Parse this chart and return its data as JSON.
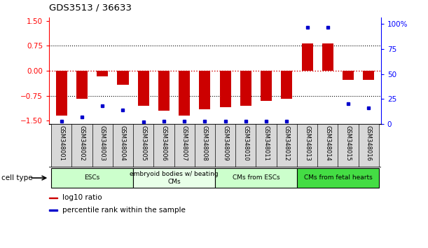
{
  "title": "GDS3513 / 36633",
  "samples": [
    "GSM348001",
    "GSM348002",
    "GSM348003",
    "GSM348004",
    "GSM348005",
    "GSM348006",
    "GSM348007",
    "GSM348008",
    "GSM348009",
    "GSM348010",
    "GSM348011",
    "GSM348012",
    "GSM348013",
    "GSM348014",
    "GSM348015",
    "GSM348016"
  ],
  "log10_ratio": [
    -1.35,
    -0.85,
    -0.18,
    -0.42,
    -1.05,
    -1.2,
    -1.35,
    -1.15,
    -1.1,
    -1.05,
    -0.9,
    -0.85,
    0.82,
    0.82,
    -0.28,
    -0.28
  ],
  "percentile_rank": [
    3,
    7,
    18,
    14,
    2,
    3,
    3,
    3,
    3,
    3,
    3,
    3,
    97,
    97,
    20,
    16
  ],
  "cell_groups": [
    {
      "label": "ESCs",
      "start": 0,
      "end": 3,
      "color": "#ccffcc"
    },
    {
      "label": "embryoid bodies w/ beating\nCMs",
      "start": 4,
      "end": 7,
      "color": "#e8ffe8"
    },
    {
      "label": "CMs from ESCs",
      "start": 8,
      "end": 11,
      "color": "#ccffcc"
    },
    {
      "label": "CMs from fetal hearts",
      "start": 12,
      "end": 15,
      "color": "#44dd44"
    }
  ],
  "ylim_left": [
    -1.6,
    1.6
  ],
  "yticks_left": [
    -1.5,
    -0.75,
    0,
    0.75,
    1.5
  ],
  "ylim_right": [
    0,
    106.667
  ],
  "yticks_right": [
    0,
    25,
    50,
    75,
    100
  ],
  "ytick_labels_right": [
    "0",
    "25",
    "50",
    "75",
    "100%"
  ],
  "bar_color": "#cc0000",
  "dot_color": "#0000cc",
  "bg_color": "#ffffff",
  "cell_type_label": "cell type",
  "legend_items": [
    {
      "label": "log10 ratio",
      "color": "#cc0000"
    },
    {
      "label": "percentile rank within the sample",
      "color": "#0000cc"
    }
  ]
}
